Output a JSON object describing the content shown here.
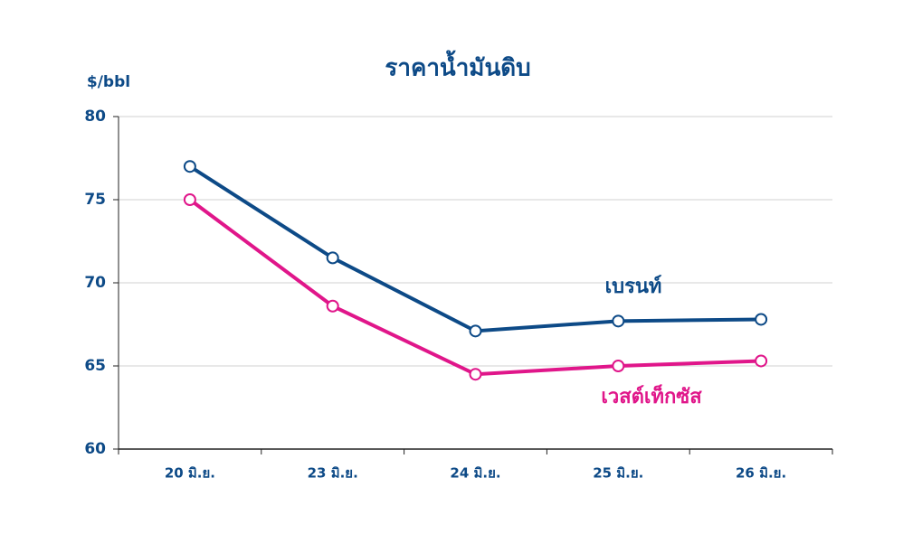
{
  "chart_data": {
    "type": "line",
    "title": "ราคาน้ำมันดิบ",
    "y_label": "$/bbl",
    "categories": [
      "20 มิ.ย.",
      "23 มิ.ย.",
      "24 มิ.ย.",
      "25 มิ.ย.",
      "26 มิ.ย."
    ],
    "series": [
      {
        "name": "เบรนท์",
        "color": "#0d4a87",
        "values": [
          77.0,
          71.5,
          67.1,
          67.7,
          67.8
        ]
      },
      {
        "name": "เวสต์เท็กซัส",
        "color": "#e0168a",
        "values": [
          75.0,
          68.6,
          64.5,
          65.0,
          65.3
        ]
      }
    ],
    "ylim": [
      60,
      80
    ],
    "yticks": [
      60,
      65,
      70,
      75,
      80
    ],
    "grid": true
  }
}
